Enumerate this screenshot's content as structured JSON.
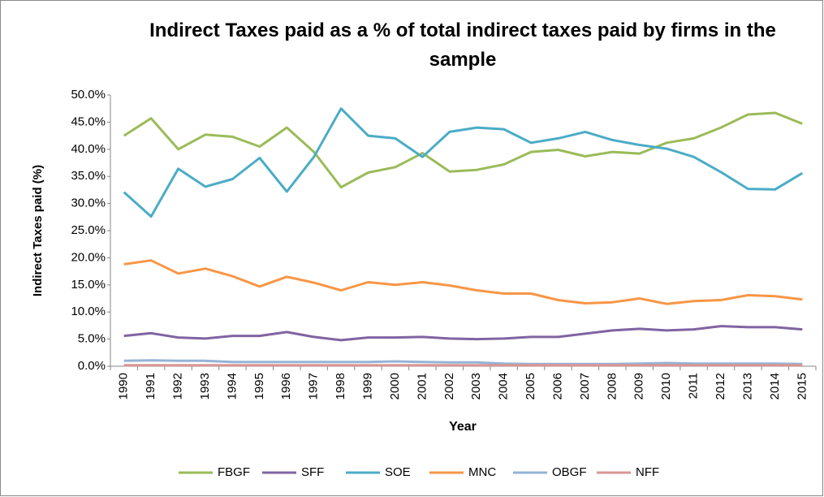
{
  "chart_data": {
    "type": "line",
    "title": "Indirect Taxes paid as a % of total indirect taxes paid by firms in the sample",
    "x_label": "Year",
    "y_label": "Indirect Taxes paid (%)",
    "categories": [
      "1990",
      "1991",
      "1992",
      "1993",
      "1994",
      "1995",
      "1996",
      "1997",
      "1998",
      "1999",
      "2000",
      "2001",
      "2002",
      "2003",
      "2004",
      "2005",
      "2006",
      "2007",
      "2008",
      "2009",
      "2010",
      "2011",
      "2012",
      "2013",
      "2014",
      "2015"
    ],
    "series": [
      {
        "name": "FBGF",
        "color": "#9bbb59",
        "values": [
          42.5,
          45.7,
          40.0,
          42.7,
          42.3,
          40.5,
          44.0,
          39.5,
          33.0,
          35.7,
          36.7,
          39.3,
          35.9,
          36.2,
          37.2,
          39.5,
          39.9,
          38.7,
          39.5,
          39.2,
          41.2,
          42.0,
          44.0,
          46.4,
          46.7,
          44.7
        ]
      },
      {
        "name": "SFF",
        "color": "#8064a2",
        "values": [
          5.6,
          6.1,
          5.3,
          5.1,
          5.6,
          5.6,
          6.3,
          5.4,
          4.8,
          5.3,
          5.3,
          5.4,
          5.1,
          5.0,
          5.1,
          5.4,
          5.4,
          6.0,
          6.6,
          6.9,
          6.6,
          6.8,
          7.4,
          7.2,
          7.2,
          6.8
        ]
      },
      {
        "name": "SOE",
        "color": "#4bacc6",
        "values": [
          32.1,
          27.6,
          36.4,
          33.1,
          34.5,
          38.4,
          32.2,
          38.6,
          47.5,
          42.5,
          42.0,
          38.6,
          43.2,
          44.0,
          43.7,
          41.2,
          42.0,
          43.2,
          41.7,
          40.8,
          40.1,
          38.6,
          35.8,
          32.7,
          32.6,
          35.6
        ]
      },
      {
        "name": "MNC",
        "color": "#f79646",
        "values": [
          18.8,
          19.5,
          17.1,
          18.0,
          16.6,
          14.7,
          16.5,
          15.4,
          14.0,
          15.5,
          15.0,
          15.5,
          14.9,
          14.0,
          13.4,
          13.4,
          12.2,
          11.6,
          11.8,
          12.5,
          11.5,
          12.0,
          12.2,
          13.1,
          12.9,
          12.3
        ]
      },
      {
        "name": "OBGF",
        "color": "#95b3d7",
        "values": [
          1.0,
          1.1,
          1.0,
          1.0,
          0.8,
          0.8,
          0.8,
          0.8,
          0.8,
          0.8,
          0.9,
          0.8,
          0.7,
          0.7,
          0.5,
          0.4,
          0.4,
          0.4,
          0.4,
          0.5,
          0.6,
          0.5,
          0.5,
          0.5,
          0.5,
          0.4
        ]
      },
      {
        "name": "NFF",
        "color": "#d99694",
        "values": [
          0.2,
          0.2,
          0.2,
          0.2,
          0.2,
          0.2,
          0.2,
          0.2,
          0.2,
          0.2,
          0.2,
          0.2,
          0.2,
          0.2,
          0.2,
          0.2,
          0.2,
          0.2,
          0.2,
          0.2,
          0.2,
          0.2,
          0.2,
          0.2,
          0.2,
          0.2
        ]
      }
    ],
    "ylim": [
      0,
      50
    ],
    "yticks": [
      {
        "value": 0,
        "label": "0.0%"
      },
      {
        "value": 5,
        "label": "5.0%"
      },
      {
        "value": 10,
        "label": "10.0%"
      },
      {
        "value": 15,
        "label": "15.0%"
      },
      {
        "value": 20,
        "label": "20.0%"
      },
      {
        "value": 25,
        "label": "25.0%"
      },
      {
        "value": 30,
        "label": "30.0%"
      },
      {
        "value": 35,
        "label": "35.0%"
      },
      {
        "value": 40,
        "label": "40.0%"
      },
      {
        "value": 45,
        "label": "45.0%"
      },
      {
        "value": 50,
        "label": "50.0%"
      }
    ],
    "legend": "bottom"
  }
}
